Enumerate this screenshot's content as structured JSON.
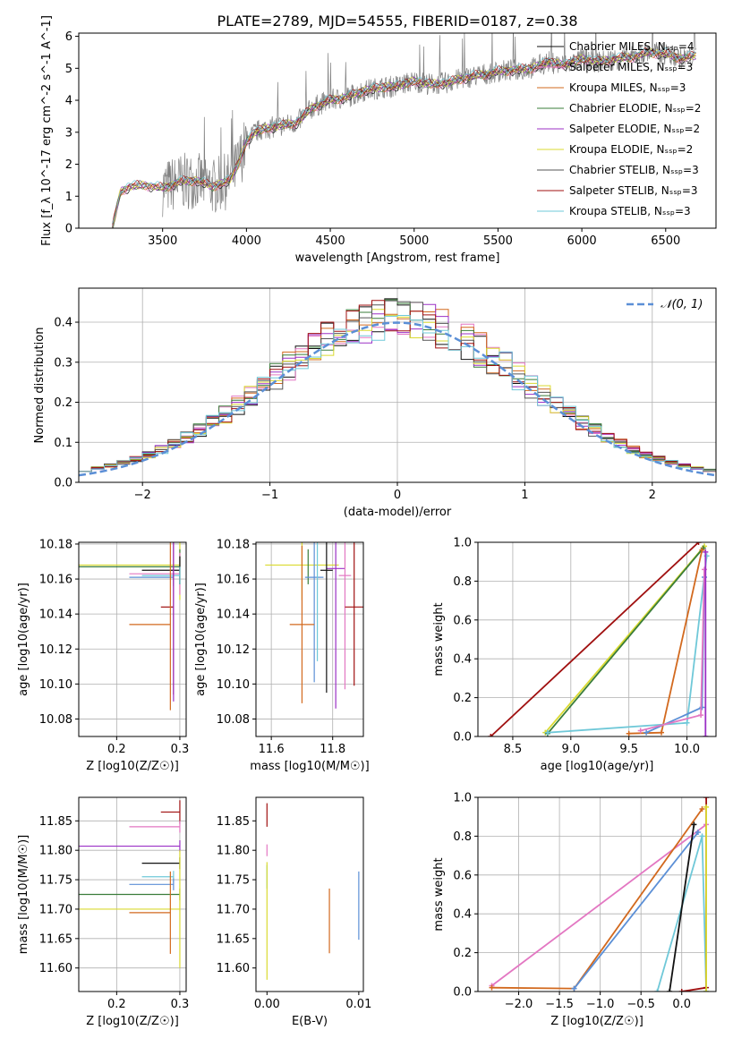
{
  "figure": {
    "title": "PLATE=2789, MJD=54555, FIBERID=0187, z=0.38"
  },
  "colors": {
    "chabrier_miles": "#111111",
    "salpeter_miles": "#e377c2",
    "kroupa_miles": "#d2691e",
    "chabrier_elodie": "#3a7d3a",
    "salpeter_elodie": "#9b30c6",
    "kroupa_elodie": "#dada30",
    "chabrier_stelib": "#555555",
    "salpeter_stelib": "#a01010",
    "kroupa_stelib": "#6fc8d8",
    "observed_spectrum": "#808080",
    "gaussian": "#5b8fd6"
  },
  "chart_data": [
    {
      "id": "spectrum",
      "type": "line",
      "title": "PLATE=2789, MJD=54555, FIBERID=0187, z=0.38",
      "xlabel": "wavelength [Angstrom, rest frame]",
      "ylabel": "Flux [f_λ 10^-17 erg cm^-2 s^-1 A^-1]",
      "xlim": [
        3000,
        6800
      ],
      "ylim": [
        0,
        6.1
      ],
      "xticks": [
        3500,
        4000,
        4500,
        5000,
        5500,
        6000,
        6500
      ],
      "yticks": [
        0,
        1,
        2,
        3,
        4,
        5,
        6
      ],
      "grid": false,
      "legend_position": "top-right",
      "continuum": {
        "x": [
          3200,
          3250,
          3300,
          3400,
          3500,
          3600,
          3700,
          3800,
          3900,
          3950,
          4000,
          4050,
          4100,
          4200,
          4300,
          4400,
          4500,
          4600,
          4700,
          4800,
          4900,
          5000,
          5100,
          5200,
          5300,
          5400,
          5500,
          5600,
          5700,
          5800,
          5900,
          6000,
          6100,
          6200,
          6300,
          6400,
          6500,
          6600,
          6680
        ],
        "y": [
          0.0,
          1.15,
          1.3,
          1.35,
          1.25,
          1.45,
          1.5,
          1.3,
          1.5,
          2.0,
          2.7,
          3.0,
          3.1,
          3.2,
          3.3,
          3.8,
          4.0,
          4.1,
          4.3,
          4.4,
          4.45,
          4.6,
          4.5,
          4.55,
          4.7,
          4.8,
          4.9,
          4.95,
          5.0,
          5.2,
          5.1,
          5.3,
          5.2,
          5.3,
          5.35,
          5.5,
          5.45,
          5.3,
          5.4
        ]
      },
      "series": [
        {
          "name": "Chabrier MILES, N_SSP=4",
          "color_key": "chabrier_miles"
        },
        {
          "name": "Salpeter MILES, N_SSP=3",
          "color_key": "salpeter_miles"
        },
        {
          "name": "Kroupa MILES, N_SSP=3",
          "color_key": "kroupa_miles"
        },
        {
          "name": "Chabrier ELODIE, N_SSP=2",
          "color_key": "chabrier_elodie"
        },
        {
          "name": "Salpeter ELODIE, N_SSP=2",
          "color_key": "salpeter_elodie"
        },
        {
          "name": "Kroupa ELODIE, N_SSP=2",
          "color_key": "kroupa_elodie"
        },
        {
          "name": "Chabrier STELIB, N_SSP=3",
          "color_key": "chabrier_stelib"
        },
        {
          "name": "Salpeter STELIB, N_SSP=3",
          "color_key": "salpeter_stelib"
        },
        {
          "name": "Kroupa STELIB, N_SSP=3",
          "color_key": "kroupa_stelib"
        }
      ]
    },
    {
      "id": "residuals",
      "type": "line",
      "xlabel": "(data-model)/error",
      "ylabel": "Normed distribution",
      "xlim": [
        -2.5,
        2.5
      ],
      "ylim": [
        0,
        0.485
      ],
      "xticks": [
        -2,
        -1,
        0,
        1,
        2
      ],
      "yticks": [
        0.0,
        0.1,
        0.2,
        0.3,
        0.4
      ],
      "grid": true,
      "legend_position": "top-right",
      "legend": [
        "𝒩(0, 1)"
      ],
      "gaussian": {
        "mean": 0,
        "sigma": 1
      },
      "histogram_bin_width": 0.1,
      "histogram_base": [
        0.018,
        0.022,
        0.027,
        0.031,
        0.035,
        0.04,
        0.048,
        0.056,
        0.06,
        0.07,
        0.078,
        0.085,
        0.095,
        0.11,
        0.128,
        0.14,
        0.16,
        0.18,
        0.2,
        0.22,
        0.24,
        0.245,
        0.26,
        0.28,
        0.3,
        0.32,
        0.34,
        0.36,
        0.38,
        0.39,
        0.4,
        0.41,
        0.42,
        0.4,
        0.41,
        0.42,
        0.4,
        0.39,
        0.38,
        0.37,
        0.36,
        0.34,
        0.32,
        0.3,
        0.29,
        0.27,
        0.25,
        0.23,
        0.21,
        0.19,
        0.17,
        0.15,
        0.13,
        0.11,
        0.1,
        0.09,
        0.075,
        0.065,
        0.05,
        0.04,
        0.035,
        0.03,
        0.025,
        0.02,
        0.018,
        0.015,
        0.012,
        0.01,
        0.01,
        0.01,
        0.01,
        0.01,
        0.01,
        0.01,
        0.01,
        0.01,
        0.01,
        0.01,
        0.01,
        0.01,
        0.01,
        0.01,
        0.01,
        0.01,
        0.01,
        0.01,
        0.01,
        0.01,
        0.01,
        0.01,
        0.01,
        0.01,
        0.01,
        0.01,
        0.01,
        0.01,
        0.01,
        0.01,
        0.01,
        0.01
      ],
      "series_keys": [
        "chabrier_miles",
        "salpeter_miles",
        "kroupa_miles",
        "chabrier_elodie",
        "salpeter_elodie",
        "kroupa_elodie",
        "chabrier_stelib",
        "salpeter_stelib",
        "kroupa_stelib"
      ]
    },
    {
      "id": "age_vs_Z",
      "type": "scatter",
      "xlabel": "Z [log10(Z/Z☉)]",
      "ylabel": "age  [log10(age/yr)]",
      "xlim": [
        0.14,
        0.31
      ],
      "ylim": [
        10.07,
        10.181
      ],
      "xticks": [
        0.2,
        0.3
      ],
      "yticks": [
        10.08,
        10.1,
        10.12,
        10.14,
        10.16,
        10.18
      ],
      "grid": true,
      "points": [
        {
          "key": "kroupa_elodie",
          "x": 0.3,
          "y": 10.168,
          "xlo": 0.14,
          "yerr": 0.02
        },
        {
          "key": "chabrier_elodie",
          "x": 0.3,
          "y": 10.167,
          "xlo": 0.14,
          "yerr": 0.01
        },
        {
          "key": "salpeter_miles",
          "x": 0.3,
          "y": 10.163,
          "xlo": 0.22,
          "yerr": 0.012
        },
        {
          "key": "chabrier_miles",
          "x": 0.3,
          "y": 10.165,
          "xlo": 0.24,
          "yerr": 0.008
        },
        {
          "key": "kroupa_stelib",
          "x": 0.3,
          "y": 10.162,
          "xlo": 0.24,
          "yerr": 0.005
        },
        {
          "key": "gaussian",
          "x": 0.29,
          "y": 10.161,
          "xlo": 0.22,
          "yerr": 0.005
        },
        {
          "key": "salpeter_stelib",
          "x": 0.29,
          "y": 10.144,
          "xlo": 0.27,
          "yerr": 0.05
        },
        {
          "key": "kroupa_miles",
          "x": 0.285,
          "y": 10.134,
          "xlo": 0.22,
          "yerr": 0.049
        },
        {
          "key": "salpeter_elodie",
          "x": 0.29,
          "y": 10.16,
          "xlo": 0.29,
          "yerr": 0.07
        }
      ]
    },
    {
      "id": "age_vs_mass",
      "type": "scatter",
      "xlabel": "mass [log10(M/M☉)]",
      "ylabel": "age  [log10(age/yr)]",
      "xlim": [
        11.55,
        11.9
      ],
      "ylim": [
        10.07,
        10.181
      ],
      "xticks": [
        11.6,
        11.8
      ],
      "yticks": [
        10.08,
        10.1,
        10.12,
        10.14,
        10.16,
        10.18
      ],
      "grid": true,
      "points": [
        {
          "key": "kroupa_elodie",
          "x": 11.7,
          "y": 10.168,
          "xerr": 0.12,
          "yerr": 0.02
        },
        {
          "key": "chabrier_elodie",
          "x": 11.72,
          "y": 10.167,
          "xerr": 0.0,
          "yerr": 0.01
        },
        {
          "key": "salpeter_elodie",
          "x": 11.81,
          "y": 10.166,
          "xerr": 0.03,
          "yerr": 0.08
        },
        {
          "key": "chabrier_miles",
          "x": 11.78,
          "y": 10.165,
          "xerr": 0.02,
          "yerr": 0.07
        },
        {
          "key": "salpeter_miles",
          "x": 11.84,
          "y": 10.162,
          "xerr": 0.02,
          "yerr": 0.065
        },
        {
          "key": "gaussian",
          "x": 11.74,
          "y": 10.161,
          "xerr": 0.03,
          "yerr": 0.06
        },
        {
          "key": "kroupa_stelib",
          "x": 11.75,
          "y": 10.163,
          "xerr": 0.0,
          "yerr": 0.05
        },
        {
          "key": "salpeter_stelib",
          "x": 11.87,
          "y": 10.144,
          "xerr": 0.03,
          "yerr": 0.045
        },
        {
          "key": "kroupa_miles",
          "x": 11.7,
          "y": 10.134,
          "xerr": 0.04,
          "yerr": 0.045
        }
      ]
    },
    {
      "id": "massweight_vs_age",
      "type": "line",
      "xlabel": "age  [log10(age/yr)]",
      "ylabel": "mass weight",
      "xlim": [
        8.2,
        10.25
      ],
      "ylim": [
        0,
        1.0
      ],
      "xticks": [
        8.5,
        9.0,
        9.5,
        10.0
      ],
      "yticks": [
        0.0,
        0.2,
        0.4,
        0.6,
        0.8,
        1.0
      ],
      "grid": true,
      "lines": [
        {
          "key": "salpeter_stelib",
          "x": [
            8.31,
            10.1
          ],
          "y": [
            0.0,
            1.0
          ]
        },
        {
          "key": "kroupa_elodie",
          "x": [
            8.78,
            10.15
          ],
          "y": [
            0.02,
            0.98
          ]
        },
        {
          "key": "chabrier_elodie",
          "x": [
            8.8,
            10.14
          ],
          "y": [
            0.015,
            0.97
          ]
        },
        {
          "key": "kroupa_miles",
          "x": [
            9.5,
            9.78,
            10.13
          ],
          "y": [
            0.015,
            0.02,
            0.96
          ]
        },
        {
          "key": "kroupa_stelib",
          "x": [
            8.8,
            10.0,
            10.17
          ],
          "y": [
            0.02,
            0.07,
            0.93
          ]
        },
        {
          "key": "gaussian",
          "x": [
            9.65,
            10.13,
            10.15
          ],
          "y": [
            0.02,
            0.15,
            0.82
          ]
        },
        {
          "key": "salpeter_miles",
          "x": [
            9.6,
            10.12,
            10.15
          ],
          "y": [
            0.03,
            0.11,
            0.86
          ]
        },
        {
          "key": "salpeter_elodie",
          "x": [
            10.16,
            10.16
          ],
          "y": [
            0.0,
            0.95
          ]
        }
      ]
    },
    {
      "id": "mass_vs_Z",
      "type": "scatter",
      "xlabel": "Z [log10(Z/Z☉)]",
      "ylabel": "mass [log10(M/M☉)]",
      "xlim": [
        0.14,
        0.31
      ],
      "ylim": [
        11.56,
        11.89
      ],
      "xticks": [
        0.2,
        0.3
      ],
      "yticks": [
        11.6,
        11.65,
        11.7,
        11.75,
        11.8,
        11.85
      ],
      "grid": true,
      "points": [
        {
          "key": "salpeter_stelib",
          "x": 0.3,
          "y": 11.865,
          "xlo": 0.27,
          "yerr": 0.02
        },
        {
          "key": "salpeter_miles",
          "x": 0.3,
          "y": 11.84,
          "xlo": 0.22,
          "yerr": 0.01
        },
        {
          "key": "salpeter_elodie",
          "x": 0.3,
          "y": 11.807,
          "xlo": 0.14,
          "yerr": 0.01
        },
        {
          "key": "chabrier_miles",
          "x": 0.3,
          "y": 11.778,
          "xlo": 0.24,
          "yerr": 0.01
        },
        {
          "key": "kroupa_stelib",
          "x": 0.29,
          "y": 11.755,
          "xlo": 0.24,
          "yerr": 0.01
        },
        {
          "key": "gaussian",
          "x": 0.29,
          "y": 11.742,
          "xlo": 0.22,
          "yerr": 0.01
        },
        {
          "key": "chabrier_elodie",
          "x": 0.3,
          "y": 11.725,
          "xlo": 0.14,
          "yerr": 0.01
        },
        {
          "key": "kroupa_elodie",
          "x": 0.3,
          "y": 11.7,
          "xlo": 0.14,
          "yerr": 0.1
        },
        {
          "key": "kroupa_miles",
          "x": 0.285,
          "y": 11.694,
          "xlo": 0.22,
          "yerr": 0.07
        }
      ]
    },
    {
      "id": "mass_vs_ebv",
      "type": "scatter",
      "xlabel": "E(B-V)",
      "ylabel": "",
      "xlim": [
        -0.0012,
        0.0105
      ],
      "ylim": [
        11.56,
        11.89
      ],
      "xticks": [
        0.0,
        0.01
      ],
      "xticklabels": [
        "0.00",
        "0.01"
      ],
      "yticks": [
        11.6,
        11.65,
        11.7,
        11.75,
        11.8,
        11.85
      ],
      "grid": false,
      "points": [
        {
          "key": "salpeter_stelib",
          "x": 0.0,
          "y": 11.86,
          "yerr": 0.02
        },
        {
          "key": "salpeter_miles",
          "x": 0.0,
          "y": 11.8,
          "yerr": 0.01
        },
        {
          "key": "kroupa_stelib",
          "x": 0.0,
          "y": 11.755,
          "yerr": 0.02
        },
        {
          "key": "kroupa_elodie",
          "x": 0.0,
          "y": 11.68,
          "yerr": 0.1
        },
        {
          "key": "kroupa_miles",
          "x": 0.0068,
          "y": 11.68,
          "yerr": 0.055
        },
        {
          "key": "gaussian",
          "x": 0.01,
          "y": 11.706,
          "yerr": 0.058
        }
      ]
    },
    {
      "id": "massweight_vs_Z",
      "type": "line",
      "xlabel": "Z [log10(Z/Z☉)]",
      "ylabel": "mass weight",
      "xlim": [
        -2.5,
        0.42
      ],
      "ylim": [
        0,
        1.0
      ],
      "xticks": [
        -2.0,
        -1.5,
        -1.0,
        -0.5,
        0.0
      ],
      "yticks": [
        0.0,
        0.2,
        0.4,
        0.6,
        0.8,
        1.0
      ],
      "grid": true,
      "lines": [
        {
          "key": "salpeter_miles",
          "x": [
            -2.33,
            0.3
          ],
          "y": [
            0.03,
            0.86
          ]
        },
        {
          "key": "kroupa_miles",
          "x": [
            -2.33,
            -1.32,
            0.25
          ],
          "y": [
            0.02,
            0.015,
            0.94
          ]
        },
        {
          "key": "gaussian",
          "x": [
            -1.32,
            0.2
          ],
          "y": [
            0.015,
            0.82
          ]
        },
        {
          "key": "kroupa_stelib",
          "x": [
            -0.3,
            0.25,
            0.3
          ],
          "y": [
            0.0,
            0.8,
            0.0
          ]
        },
        {
          "key": "chabrier_miles",
          "x": [
            -0.15,
            0.15
          ],
          "y": [
            0.0,
            0.86
          ]
        },
        {
          "key": "salpeter_stelib",
          "x": [
            0.0,
            0.3,
            0.3
          ],
          "y": [
            0.0,
            0.02,
            1.0
          ]
        },
        {
          "key": "kroupa_elodie",
          "x": [
            0.3,
            0.3
          ],
          "y": [
            0.0,
            0.95
          ]
        }
      ]
    }
  ]
}
